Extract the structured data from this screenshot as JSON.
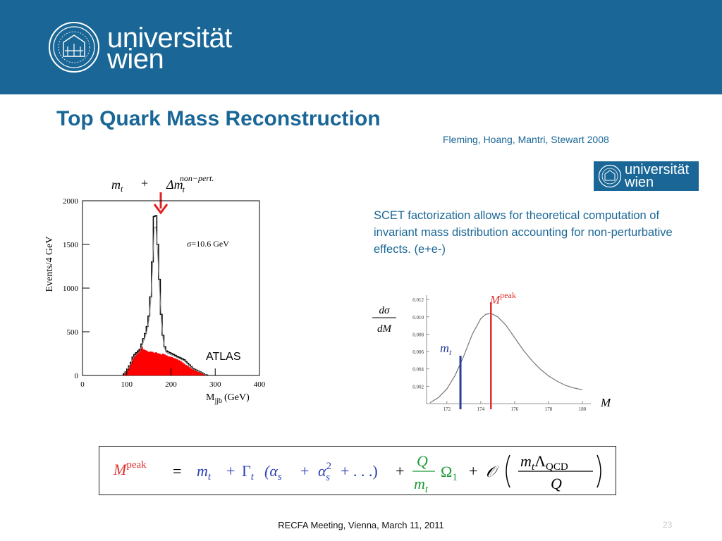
{
  "header": {
    "logo_line1": "universität",
    "logo_line2": "wien"
  },
  "slide": {
    "title": "Top Quark Mass Reconstruction",
    "authors": "Fleming, Hoang, Mantri, Stewart   2008",
    "description": "SCET factorization allows for theoretical computation of invariant mass distribution accounting for non-perturbative effects. (e+e-)",
    "footer": "RECFA Meeting, Vienna, March 11, 2011",
    "page_number": "23"
  },
  "formula": {
    "lhs_symbol": "M",
    "lhs_sup": "peak",
    "equals": "=",
    "term_mt": "m",
    "term_mt_sub": "t",
    "term_gamma": "Γ",
    "term_gamma_sub": "t",
    "term_alpha_open": "(α",
    "term_alpha_sub": "s",
    "term_plus": "+",
    "term_alpha2": "α",
    "term_alpha2_sup": "2",
    "term_alpha2_sub": "s",
    "term_dots": "+ . . .)",
    "term_plus2": "+",
    "frac_num": "Q",
    "frac_den": "m",
    "frac_den_sub": "t",
    "term_omega": "Ω",
    "term_omega_sub": "1",
    "term_plus3": "+",
    "term_O": "𝒪",
    "big_frac_num": "m",
    "big_frac_num_sub": "t",
    "big_frac_num_lambda": "Λ",
    "big_frac_num_lambda_sub": "QCD",
    "big_frac_den": "Q"
  },
  "chart_data": [
    {
      "type": "bar",
      "annotation_mt": "m",
      "annotation_mt_sub": "t",
      "annotation_plus": "+",
      "annotation_delta": "Δm",
      "annotation_delta_sub": "t",
      "annotation_delta_sup": "non−pert.",
      "ylabel": "Events/4 GeV",
      "xlabel": "M",
      "xlabel_sub": "jjb",
      "xlabel_unit": "(GeV)",
      "sigma_label": "σ=10.6 GeV",
      "experiment_label": "ATLAS",
      "xlim": [
        0,
        400
      ],
      "ylim": [
        0,
        2000
      ],
      "xticks": [
        "0",
        "100",
        "200",
        "300",
        "400"
      ],
      "yticks": [
        "0",
        "500",
        "1000",
        "1500",
        "2000"
      ],
      "colors": {
        "background_hist": "#ff0000",
        "signal_hist": "#000000",
        "fit": "#888888",
        "arrow": "#e02020"
      },
      "signal_histogram": {
        "x": [
          92,
          96,
          100,
          104,
          108,
          112,
          116,
          120,
          124,
          128,
          132,
          136,
          140,
          144,
          148,
          152,
          156,
          160,
          164,
          168,
          172,
          176,
          180,
          184,
          188,
          192,
          196,
          200,
          204,
          208,
          212,
          216,
          220,
          224,
          228,
          232,
          236,
          240,
          244,
          248,
          252,
          256,
          260,
          264,
          268,
          272,
          276,
          280
        ],
        "y": [
          20,
          40,
          70,
          110,
          150,
          210,
          240,
          260,
          280,
          300,
          360,
          420,
          480,
          560,
          680,
          900,
          1300,
          1820,
          1830,
          1500,
          1100,
          700,
          460,
          330,
          280,
          270,
          260,
          250,
          240,
          230,
          220,
          210,
          200,
          190,
          180,
          160,
          140,
          120,
          100,
          80,
          70,
          60,
          50,
          40,
          30,
          20,
          10,
          5
        ]
      },
      "background_histogram": {
        "x": [
          92,
          96,
          100,
          104,
          108,
          112,
          116,
          120,
          124,
          128,
          132,
          136,
          140,
          144,
          148,
          152,
          156,
          160,
          164,
          168,
          172,
          176,
          180,
          184,
          188,
          192,
          196,
          200,
          204,
          208,
          212,
          216,
          220,
          224,
          228,
          232,
          236,
          240,
          244,
          248,
          252,
          256,
          260,
          264,
          268,
          272,
          276,
          280
        ],
        "y": [
          20,
          40,
          70,
          110,
          150,
          200,
          230,
          260,
          280,
          300,
          330,
          300,
          290,
          280,
          270,
          275,
          270,
          260,
          265,
          255,
          250,
          240,
          250,
          240,
          230,
          220,
          215,
          210,
          200,
          195,
          185,
          175,
          165,
          150,
          135,
          120,
          110,
          95,
          80,
          70,
          60,
          50,
          40,
          35,
          30,
          20,
          10,
          5
        ]
      }
    },
    {
      "type": "line",
      "ylabel_num": "dσ",
      "ylabel_den": "dM",
      "xlabel": "M",
      "peak_label": "M",
      "peak_label_sup": "peak",
      "mt_label": "m",
      "mt_label_sub": "t",
      "xlim": [
        170.8,
        180.5
      ],
      "ylim": [
        0,
        0.0125
      ],
      "xticks": [
        "172",
        "174",
        "176",
        "178",
        "180"
      ],
      "yticks": [
        "0.002",
        "0.004",
        "0.006",
        "0.008",
        "0.010",
        "0.012"
      ],
      "mt_value": 172.8,
      "peak_value": 174.6,
      "colors": {
        "curve": "#777777",
        "mt_line": "#2a3f9a",
        "peak_line": "#e03030"
      },
      "series": {
        "x": [
          171.0,
          171.5,
          172.0,
          172.5,
          173.0,
          173.5,
          174.0,
          174.3,
          174.6,
          175.0,
          175.5,
          176.0,
          176.5,
          177.0,
          177.5,
          178.0,
          178.5,
          179.0,
          179.5,
          180.0
        ],
        "y": [
          0.0001,
          0.0007,
          0.0017,
          0.0033,
          0.0055,
          0.008,
          0.0098,
          0.0103,
          0.0104,
          0.01,
          0.009,
          0.0076,
          0.0062,
          0.005,
          0.004,
          0.0032,
          0.0026,
          0.0021,
          0.0018,
          0.0016
        ]
      }
    }
  ]
}
